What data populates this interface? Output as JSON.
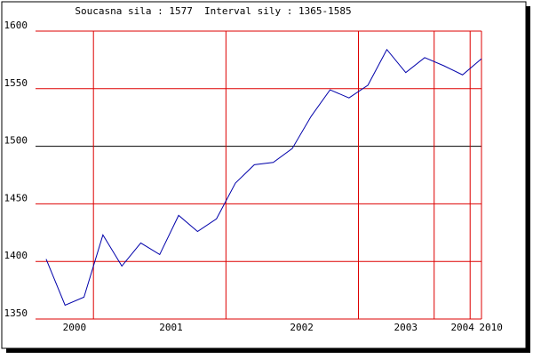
{
  "chart_data": {
    "type": "line",
    "title": "Soucasna sila : 1577  Interval sily : 1365-1585",
    "x": [
      0,
      1,
      2,
      3,
      4,
      5,
      6,
      7,
      8,
      9,
      10,
      11,
      12,
      13,
      14,
      15,
      16,
      17,
      18,
      19,
      20,
      21,
      22,
      23
    ],
    "series": [
      {
        "color": "#0000aa",
        "values": [
          1402,
          1362,
          1369,
          1423,
          1396,
          1416,
          1406,
          1440,
          1426,
          1437,
          1468,
          1484,
          1486,
          1498,
          1526,
          1549,
          1542,
          1553,
          1584,
          1564,
          1577,
          1570,
          1562,
          1576
        ]
      }
    ],
    "xlim": [
      -0.56,
      23
    ],
    "xticks": [
      {
        "value": 1.5,
        "label": "2000"
      },
      {
        "value": 6.6,
        "label": "2001"
      },
      {
        "value": 13.5,
        "label": "2002"
      },
      {
        "value": 19,
        "label": "2003"
      },
      {
        "value": 22,
        "label": "2004"
      },
      {
        "value": 23.5,
        "label": "2010"
      }
    ],
    "xgrid": [
      2.5,
      9.5,
      16.5,
      20.5,
      22.4,
      23
    ],
    "ylim": [
      1350,
      1600
    ],
    "yticks": [
      1350,
      1400,
      1450,
      1500,
      1550,
      1600
    ],
    "grid": true,
    "grid_color": "#dd0000",
    "reference_line": 1500,
    "reference_color": "#000000"
  }
}
